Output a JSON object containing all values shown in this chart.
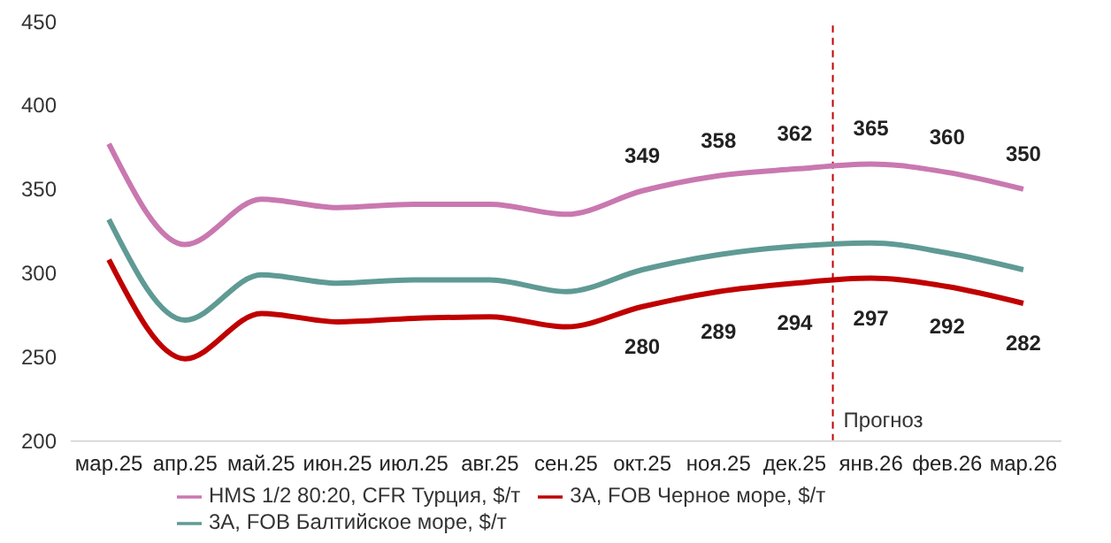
{
  "chart_data": {
    "type": "line",
    "categories": [
      "мар.25",
      "апр.25",
      "май.25",
      "июн.25",
      "июл.25",
      "авг.25",
      "сен.25",
      "окт.25",
      "ноя.25",
      "дек.25",
      "янв.26",
      "фев.26",
      "мар.26"
    ],
    "series": [
      {
        "name": "HMS 1/2 80:20,  CFR Турция, $/т",
        "color": "#c978b0",
        "values": [
          377,
          317,
          344,
          339,
          341,
          341,
          335,
          349,
          358,
          362,
          365,
          360,
          350
        ],
        "value_labels": [
          null,
          null,
          null,
          null,
          null,
          null,
          null,
          "349",
          "358",
          "362",
          "365",
          "360",
          "350"
        ]
      },
      {
        "name": "3А, FOB Черное море, $/т",
        "color": "#c00000",
        "values": [
          308,
          249,
          276,
          271,
          273,
          274,
          268,
          280,
          289,
          294,
          297,
          292,
          282
        ],
        "value_labels": [
          null,
          null,
          null,
          null,
          null,
          null,
          null,
          "280",
          "289",
          "294",
          "297",
          "292",
          "282"
        ]
      },
      {
        "name": "3А, FOB Балтийское море, $/т",
        "color": "#5f9a94",
        "values": [
          332,
          272,
          299,
          294,
          296,
          296,
          289,
          302,
          311,
          316,
          318,
          312,
          302
        ]
      }
    ],
    "ylim": [
      200,
      450
    ],
    "yticks": [
      200,
      250,
      300,
      350,
      400,
      450
    ],
    "grid": false,
    "legend": "bottom",
    "ref_lines": [
      {
        "axis": "x",
        "value": "янв.26",
        "label": "Прогноз",
        "color": "#c00000",
        "line_style": "dashed"
      }
    ]
  }
}
